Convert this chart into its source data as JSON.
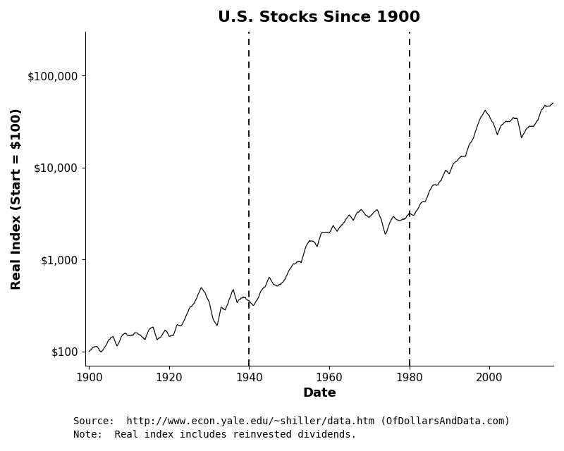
{
  "title": "U.S. Stocks Since 1900",
  "xlabel": "Date",
  "ylabel": "Real Index (Start = $100)",
  "source_text": "Source:  http://www.econ.yale.edu/~shiller/data.htm (OfDollarsAndData.com)",
  "note_text": "Note:  Real index includes reinvested dividends.",
  "vline_years": [
    1940,
    1980
  ],
  "background_color": "#ffffff",
  "line_color": "#000000",
  "title_fontsize": 16,
  "label_fontsize": 13,
  "tick_fontsize": 11,
  "annotation_fontsize": 10,
  "ylim_min": 70,
  "ylim_max": 300000,
  "xlim_min": 1899,
  "xlim_max": 2016,
  "yticks": [
    100,
    1000,
    10000,
    100000
  ],
  "xticks": [
    1900,
    1920,
    1940,
    1960,
    1980,
    2000
  ],
  "annual_years": [
    1900,
    1901,
    1902,
    1903,
    1904,
    1905,
    1906,
    1907,
    1908,
    1909,
    1910,
    1911,
    1912,
    1913,
    1914,
    1915,
    1916,
    1917,
    1918,
    1919,
    1920,
    1921,
    1922,
    1923,
    1924,
    1925,
    1926,
    1927,
    1928,
    1929,
    1930,
    1931,
    1932,
    1933,
    1934,
    1935,
    1936,
    1937,
    1938,
    1939,
    1940,
    1941,
    1942,
    1943,
    1944,
    1945,
    1946,
    1947,
    1948,
    1949,
    1950,
    1951,
    1952,
    1953,
    1954,
    1955,
    1956,
    1957,
    1958,
    1959,
    1960,
    1961,
    1962,
    1963,
    1964,
    1965,
    1966,
    1967,
    1968,
    1969,
    1970,
    1971,
    1972,
    1973,
    1974,
    1975,
    1976,
    1977,
    1978,
    1979,
    1980,
    1981,
    1982,
    1983,
    1984,
    1985,
    1986,
    1987,
    1988,
    1989,
    1990,
    1991,
    1992,
    1993,
    1994,
    1995,
    1996,
    1997,
    1998,
    1999,
    2000,
    2001,
    2002,
    2003,
    2004,
    2005,
    2006,
    2007,
    2008,
    2009,
    2010,
    2011,
    2012,
    2013,
    2014,
    2015,
    2016
  ],
  "annual_values": [
    100,
    112,
    118,
    105,
    122,
    148,
    153,
    117,
    148,
    167,
    156,
    162,
    172,
    154,
    134,
    174,
    188,
    141,
    152,
    184,
    157,
    168,
    218,
    219,
    272,
    336,
    370,
    462,
    589,
    527,
    413,
    263,
    226,
    353,
    328,
    434,
    543,
    385,
    456,
    453,
    420,
    366,
    412,
    530,
    596,
    751,
    634,
    622,
    645,
    737,
    885,
    1010,
    1087,
    1054,
    1510,
    1850,
    1850,
    1650,
    2200,
    2350,
    2270,
    2720,
    2360,
    2800,
    3150,
    3380,
    2960,
    3520,
    3720,
    3230,
    3100,
    3500,
    3950,
    3100,
    2200,
    2950,
    3500,
    3100,
    3050,
    3200,
    3600,
    3400,
    4000,
    4800,
    5000,
    6400,
    7400,
    7500,
    8500,
    10800,
    9500,
    12100,
    12800,
    13800,
    13600,
    18200,
    21800,
    28400,
    35600,
    42000,
    35500,
    30000,
    22500,
    28500,
    30800,
    31500,
    35500,
    36000,
    22000,
    27000,
    30500,
    30000,
    33500,
    43000,
    47500,
    46000,
    50000
  ]
}
